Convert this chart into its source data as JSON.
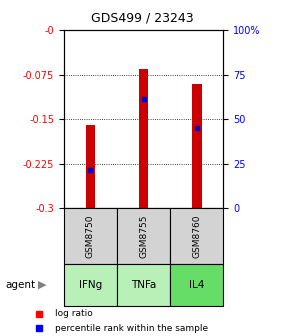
{
  "title": "GDS499 / 23243",
  "samples": [
    "GSM8750",
    "GSM8755",
    "GSM8760"
  ],
  "agents": [
    "IFNg",
    "TNFa",
    "IL4"
  ],
  "log_ratio": [
    -0.16,
    -0.065,
    -0.09
  ],
  "percentile_rank": [
    -0.235,
    -0.115,
    -0.165
  ],
  "ymin": -0.3,
  "ymax": 0.0,
  "yticks_left": [
    0.0,
    -0.075,
    -0.15,
    -0.225,
    -0.3
  ],
  "ytick_left_labels": [
    "-0",
    "-0.075",
    "-0.15",
    "-0.225",
    "-0.3"
  ],
  "yticks_right_val": [
    0.0,
    -0.075,
    -0.15,
    -0.225,
    -0.3
  ],
  "yticks_right_label": [
    "100%",
    "75",
    "50",
    "25",
    "0"
  ],
  "bar_color": "#cc0000",
  "marker_color": "#0000cc",
  "agent_colors": [
    "#b8f0b8",
    "#b8f0b8",
    "#90ee90"
  ],
  "sample_box_color": "#d3d3d3",
  "bar_width": 0.18,
  "bar_bottom": -0.3
}
